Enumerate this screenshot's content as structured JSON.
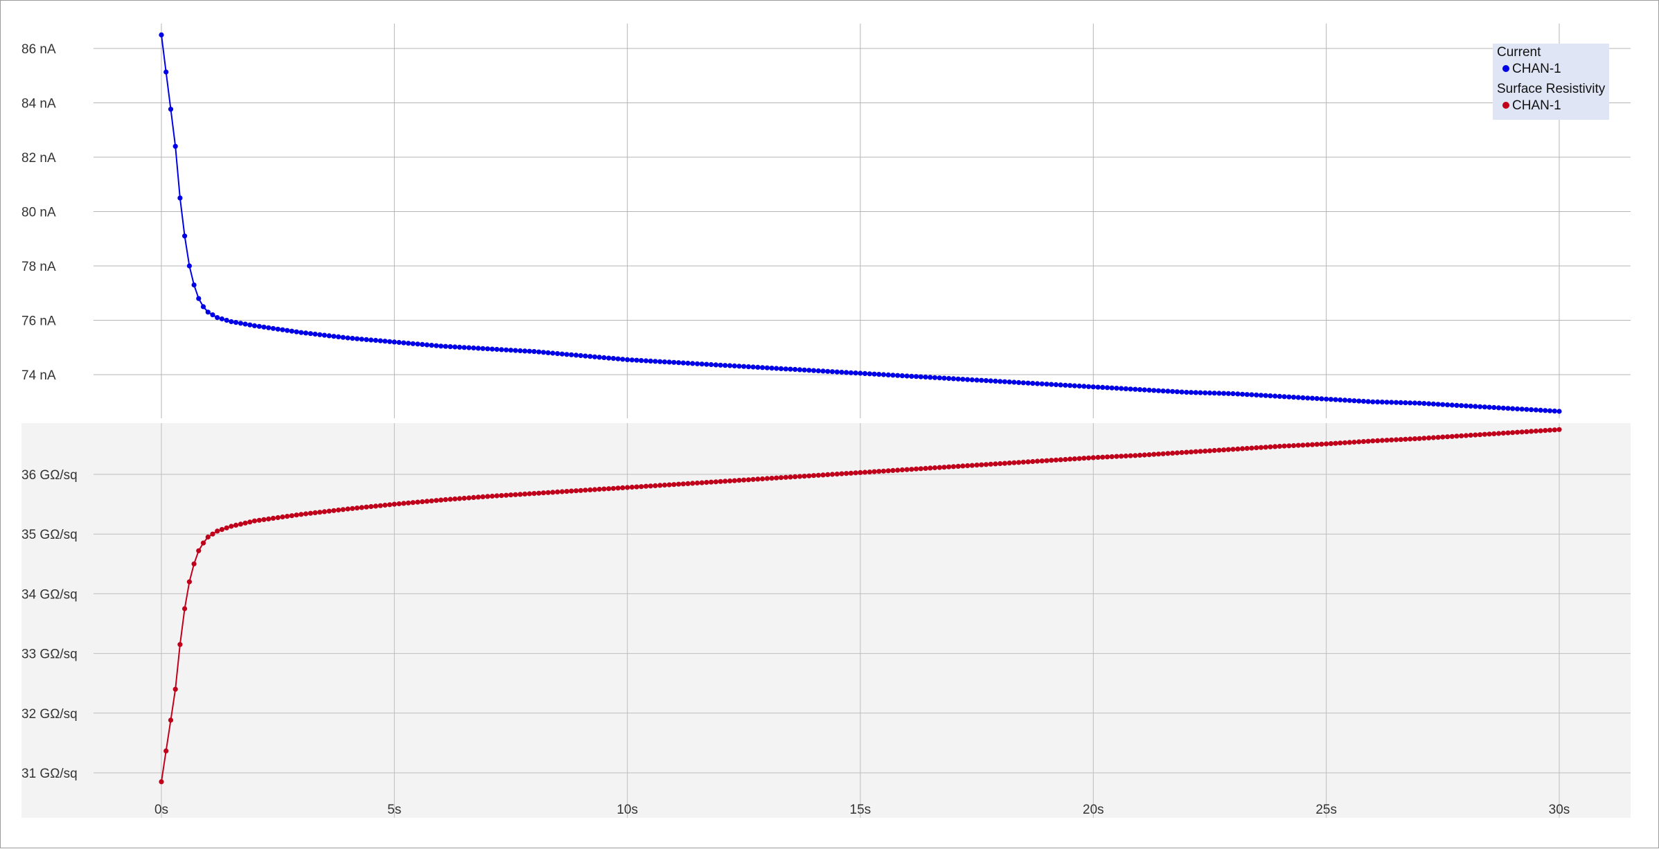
{
  "chart_data": [
    {
      "type": "line",
      "title": "",
      "xlabel": "",
      "ylabel": "",
      "xlim": [
        0,
        30
      ],
      "ylim": [
        72.5,
        87.5
      ],
      "x_tick_labels": [
        "0s",
        "5s",
        "10s",
        "15s",
        "20s",
        "25s",
        "30s"
      ],
      "y_ticks": [
        74,
        76,
        78,
        80,
        82,
        84,
        86
      ],
      "y_tick_labels": [
        "74 nA",
        "76 nA",
        "78 nA",
        "80 nA",
        "82 nA",
        "84 nA",
        "86 nA"
      ],
      "background": "#ffffff",
      "grid": true,
      "series": [
        {
          "group": "Current",
          "name": "CHAN-1",
          "color": "#0000e6",
          "x": [
            0,
            0.3,
            0.4,
            0.5,
            0.6,
            0.7,
            0.8,
            0.9,
            1.0,
            1.2,
            1.5,
            2,
            3,
            4,
            5,
            6,
            7,
            8,
            9,
            10,
            11,
            12,
            13,
            14,
            15,
            16,
            17,
            18,
            19,
            20,
            21,
            22,
            23,
            24,
            25,
            26,
            27,
            28,
            29,
            30
          ],
          "y": [
            86.5,
            82.4,
            80.5,
            79.1,
            78.0,
            77.3,
            76.8,
            76.5,
            76.3,
            76.1,
            75.95,
            75.8,
            75.55,
            75.35,
            75.2,
            75.05,
            74.95,
            74.85,
            74.7,
            74.55,
            74.45,
            74.35,
            74.25,
            74.15,
            74.05,
            73.95,
            73.85,
            73.75,
            73.65,
            73.55,
            73.45,
            73.35,
            73.3,
            73.2,
            73.1,
            73.0,
            72.95,
            72.85,
            72.75,
            72.65
          ]
        }
      ]
    },
    {
      "type": "line",
      "title": "",
      "xlabel": "",
      "ylabel": "",
      "xlim": [
        0,
        30
      ],
      "ylim": [
        30.7,
        37.1
      ],
      "x_tick_labels": [
        "0s",
        "5s",
        "10s",
        "15s",
        "20s",
        "25s",
        "30s"
      ],
      "y_ticks": [
        31,
        32,
        33,
        34,
        35,
        36
      ],
      "y_tick_labels": [
        "31 GΩ/sq",
        "32 GΩ/sq",
        "33 GΩ/sq",
        "34 GΩ/sq",
        "35 GΩ/sq",
        "36 GΩ/sq"
      ],
      "background": "#f3f3f3",
      "grid": true,
      "series": [
        {
          "group": "Surface Resistivity",
          "name": "CHAN-1",
          "color": "#c0001a",
          "x": [
            0,
            0.3,
            0.4,
            0.5,
            0.6,
            0.7,
            0.8,
            0.9,
            1.0,
            1.2,
            1.5,
            2,
            3,
            4,
            5,
            6,
            7,
            8,
            9,
            10,
            11,
            12,
            13,
            14,
            15,
            16,
            17,
            18,
            19,
            20,
            21,
            22,
            23,
            24,
            25,
            26,
            27,
            28,
            29,
            30
          ],
          "y": [
            30.85,
            32.4,
            33.15,
            33.75,
            34.2,
            34.5,
            34.72,
            34.85,
            34.95,
            35.05,
            35.13,
            35.22,
            35.33,
            35.42,
            35.5,
            35.57,
            35.63,
            35.68,
            35.73,
            35.78,
            35.83,
            35.88,
            35.93,
            35.98,
            36.03,
            36.08,
            36.13,
            36.18,
            36.23,
            36.28,
            36.32,
            36.37,
            36.42,
            36.47,
            36.51,
            36.56,
            36.6,
            36.65,
            36.7,
            36.75
          ]
        }
      ]
    }
  ],
  "legend": {
    "groups": [
      {
        "title": "Current",
        "items": [
          {
            "label": "CHAN-1",
            "color": "#0000e6"
          }
        ]
      },
      {
        "title": "Surface Resistivity",
        "items": [
          {
            "label": "CHAN-1",
            "color": "#c0001a"
          }
        ]
      }
    ]
  }
}
